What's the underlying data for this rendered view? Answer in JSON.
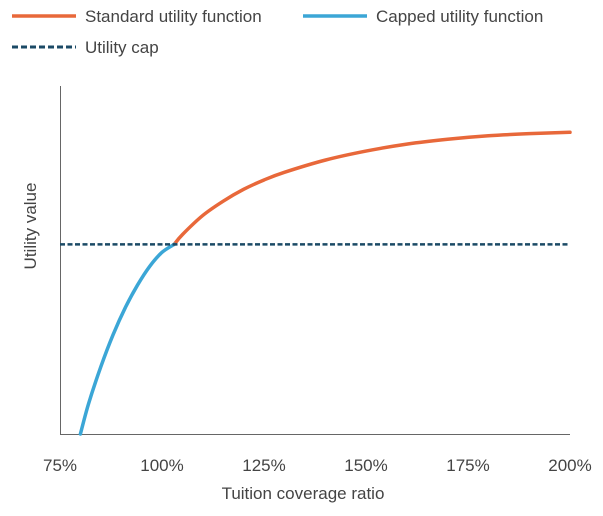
{
  "chart_data": {
    "type": "line",
    "title": "",
    "xlabel": "Tuition coverage ratio",
    "ylabel": "Utility value",
    "x_ticks": [
      75,
      100,
      125,
      150,
      175,
      200
    ],
    "x_tick_labels": [
      "75%",
      "100%",
      "125%",
      "150%",
      "175%",
      "200%"
    ],
    "xlim": [
      75,
      200
    ],
    "ylim": [
      0,
      1
    ],
    "y_ticks_shown": false,
    "grid": false,
    "legend_position": "top-left",
    "series": [
      {
        "name": "Standard utility function",
        "color": "#E8683A",
        "style": "solid",
        "x": [
          103,
          105,
          110,
          115,
          120,
          125,
          130,
          140,
          150,
          160,
          170,
          180,
          190,
          200
        ],
        "y": [
          0.545,
          0.573,
          0.628,
          0.669,
          0.703,
          0.73,
          0.752,
          0.787,
          0.813,
          0.833,
          0.847,
          0.857,
          0.863,
          0.867
        ]
      },
      {
        "name": "Capped utility function",
        "color": "#3BA6D6",
        "style": "solid",
        "x": [
          80,
          82,
          85,
          88,
          91,
          94,
          97,
          100,
          103
        ],
        "y": [
          0.0,
          0.087,
          0.193,
          0.285,
          0.363,
          0.428,
          0.482,
          0.522,
          0.545
        ]
      },
      {
        "name": "Utility cap",
        "color": "#1B4A66",
        "style": "dashed",
        "x": [
          75,
          200
        ],
        "y": [
          0.545,
          0.545
        ]
      }
    ]
  }
}
